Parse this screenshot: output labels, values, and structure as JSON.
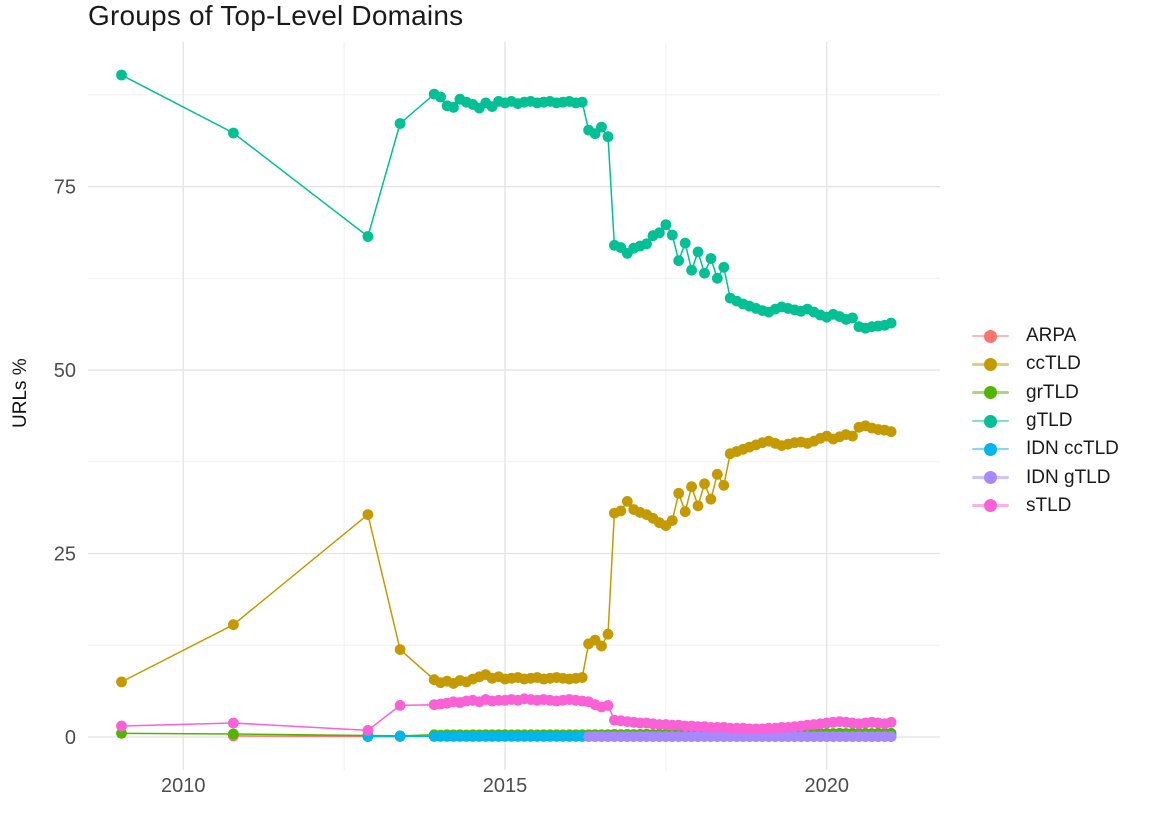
{
  "title": "Groups of Top-Level Domains",
  "axes": {
    "y_label": "URLs %",
    "x_tick_labels": [
      "2010",
      "2015",
      "2020"
    ],
    "y_tick_labels": [
      "0",
      "25",
      "50",
      "75"
    ]
  },
  "colors": {
    "background": "#FFFFFF",
    "grid_major": "#E3E3E3",
    "grid_minor": "#F0F0F0",
    "tick_text": "#4D4D4D",
    "title_text": "#1A1A1A"
  },
  "legend": {
    "entries": [
      {
        "label": "ARPA",
        "color": "#F8766D"
      },
      {
        "label": "ccTLD",
        "color": "#C49A00"
      },
      {
        "label": "grTLD",
        "color": "#53B400"
      },
      {
        "label": "gTLD",
        "color": "#00C094"
      },
      {
        "label": "IDN ccTLD",
        "color": "#00B6EB"
      },
      {
        "label": "IDN gTLD",
        "color": "#A58AFF"
      },
      {
        "label": "sTLD",
        "color": "#FB61D7"
      }
    ]
  },
  "chart_data": {
    "type": "line",
    "markers": true,
    "title": "Groups of Top-Level Domains",
    "xlabel": "",
    "ylabel": "URLs %",
    "xlim": [
      2008.52,
      2021.76
    ],
    "ylim": [
      -4.5,
      94.7
    ],
    "x_ticks": [
      2010,
      2015,
      2020
    ],
    "x_minor_ticks": [
      2012.5,
      2017.5
    ],
    "y_ticks": [
      0,
      25,
      50,
      75
    ],
    "y_minor_ticks": [
      12.5,
      37.5,
      62.5,
      87.5
    ],
    "grid": true,
    "legend_position": "right",
    "x_dense": [
      2013.9,
      2014.0,
      2014.1,
      2014.2,
      2014.3,
      2014.4,
      2014.5,
      2014.6,
      2014.7,
      2014.8,
      2014.9,
      2015.0,
      2015.1,
      2015.2,
      2015.3,
      2015.4,
      2015.5,
      2015.6,
      2015.7,
      2015.8,
      2015.9,
      2016.0,
      2016.1,
      2016.2,
      2016.3,
      2016.4,
      2016.5,
      2016.6,
      2016.7,
      2016.8,
      2016.9,
      2017.0,
      2017.1,
      2017.2,
      2017.3,
      2017.4,
      2017.5,
      2017.6,
      2017.7,
      2017.8,
      2017.9,
      2018.0,
      2018.1,
      2018.2,
      2018.3,
      2018.4,
      2018.5,
      2018.6,
      2018.7,
      2018.8,
      2018.9,
      2019.0,
      2019.1,
      2019.2,
      2019.3,
      2019.4,
      2019.5,
      2019.6,
      2019.7,
      2019.8,
      2019.9,
      2020.0,
      2020.1,
      2020.2,
      2020.3,
      2020.4,
      2020.5,
      2020.6,
      2020.7,
      2020.8,
      2020.9,
      2021.0
    ],
    "series": [
      {
        "name": "ARPA",
        "color": "#F8766D",
        "early": [
          [
            2010.78,
            0.15
          ],
          [
            2012.87,
            0.08
          ],
          [
            2013.37,
            0.05
          ]
        ],
        "y_dense": null
      },
      {
        "name": "ccTLD",
        "color": "#C49A00",
        "early": [
          [
            2009.04,
            7.5
          ],
          [
            2010.78,
            15.3
          ],
          [
            2012.87,
            30.3
          ],
          [
            2013.37,
            11.9
          ]
        ],
        "y_dense": [
          7.8,
          7.4,
          7.6,
          7.3,
          7.7,
          7.5,
          7.9,
          8.2,
          8.5,
          8.0,
          8.2,
          7.9,
          8.0,
          8.1,
          7.9,
          8.0,
          8.1,
          7.9,
          8.0,
          8.1,
          8.0,
          7.9,
          8.0,
          8.1,
          12.7,
          13.2,
          12.4,
          14.0,
          30.5,
          30.8,
          32.1,
          31.0,
          30.6,
          30.3,
          29.8,
          29.2,
          28.8,
          29.5,
          33.2,
          30.7,
          34.1,
          31.5,
          34.5,
          32.4,
          35.8,
          34.3,
          38.6,
          38.9,
          39.2,
          39.5,
          39.8,
          40.1,
          40.3,
          40.0,
          39.7,
          39.9,
          40.1,
          40.2,
          40.0,
          40.3,
          40.7,
          41.0,
          40.6,
          40.9,
          41.2,
          41.0,
          42.2,
          42.4,
          42.1,
          41.9,
          41.8,
          41.6
        ]
      },
      {
        "name": "grTLD",
        "color": "#53B400",
        "early": [
          [
            2009.04,
            0.5
          ],
          [
            2010.78,
            0.4
          ],
          [
            2012.87,
            0.2
          ],
          [
            2013.37,
            0.15
          ]
        ],
        "y_dense": [
          0.3,
          0.25,
          0.3,
          0.28,
          0.3,
          0.27,
          0.3,
          0.28,
          0.3,
          0.29,
          0.3,
          0.3,
          0.28,
          0.3,
          0.29,
          0.3,
          0.28,
          0.3,
          0.29,
          0.3,
          0.28,
          0.3,
          0.3,
          0.29,
          0.3,
          0.32,
          0.3,
          0.33,
          0.35,
          0.33,
          0.35,
          0.34,
          0.35,
          0.36,
          0.35,
          0.37,
          0.35,
          0.38,
          0.36,
          0.38,
          0.37,
          0.38,
          0.4,
          0.38,
          0.4,
          0.39,
          0.4,
          0.42,
          0.4,
          0.43,
          0.42,
          0.44,
          0.43,
          0.45,
          0.44,
          0.45,
          0.46,
          0.45,
          0.47,
          0.46,
          0.48,
          0.47,
          0.48,
          0.5,
          0.48,
          0.5,
          0.49,
          0.5,
          0.48,
          0.5,
          0.49,
          0.5
        ]
      },
      {
        "name": "gTLD",
        "color": "#00C094",
        "early": [
          [
            2009.04,
            90.2
          ],
          [
            2010.78,
            82.3
          ],
          [
            2012.87,
            68.2
          ],
          [
            2013.37,
            83.6
          ]
        ],
        "y_dense": [
          87.6,
          87.2,
          86.0,
          85.8,
          86.9,
          86.5,
          86.2,
          85.7,
          86.4,
          85.9,
          86.6,
          86.4,
          86.6,
          86.3,
          86.5,
          86.6,
          86.4,
          86.5,
          86.6,
          86.4,
          86.5,
          86.6,
          86.4,
          86.5,
          82.7,
          82.2,
          83.1,
          81.8,
          67.0,
          66.7,
          65.9,
          66.6,
          66.9,
          67.2,
          68.3,
          68.7,
          69.8,
          68.4,
          64.9,
          67.3,
          63.6,
          66.1,
          63.2,
          65.2,
          62.5,
          64.0,
          59.8,
          59.4,
          59.0,
          58.7,
          58.4,
          58.1,
          57.9,
          58.3,
          58.6,
          58.4,
          58.2,
          58.0,
          58.3,
          57.9,
          57.5,
          57.2,
          57.6,
          57.3,
          56.9,
          57.1,
          55.9,
          55.7,
          55.9,
          56.0,
          56.1,
          56.4
        ]
      },
      {
        "name": "IDN ccTLD",
        "color": "#00B6EB",
        "early": [
          [
            2012.87,
            0.05
          ],
          [
            2013.37,
            0.1
          ]
        ],
        "y_dense": [
          0.08,
          0.08,
          0.08,
          0.08,
          0.08,
          0.08,
          0.08,
          0.08,
          0.08,
          0.08,
          0.08,
          0.08,
          0.08,
          0.08,
          0.08,
          0.08,
          0.08,
          0.08,
          0.08,
          0.08,
          0.08,
          0.08,
          0.08,
          0.08,
          0.08,
          0.08,
          0.08,
          0.08,
          0.08,
          0.08,
          0.08,
          0.08,
          0.08,
          0.08,
          0.08,
          0.08,
          0.08,
          0.08,
          0.08,
          0.08,
          0.08,
          0.08,
          0.08,
          0.08,
          0.08,
          0.08,
          0.08,
          0.08,
          0.08,
          0.08,
          0.08,
          0.08,
          0.08,
          0.08,
          0.08,
          0.08,
          0.08,
          0.08,
          0.08,
          0.08,
          0.08,
          0.08,
          0.08,
          0.08,
          0.08,
          0.08,
          0.08,
          0.08,
          0.08,
          0.08,
          0.08,
          0.08
        ]
      },
      {
        "name": "IDN gTLD",
        "color": "#A58AFF",
        "early": [],
        "y_dense": [
          null,
          null,
          null,
          null,
          null,
          null,
          null,
          null,
          null,
          null,
          null,
          null,
          null,
          null,
          null,
          null,
          null,
          null,
          null,
          null,
          null,
          null,
          null,
          null,
          0.05,
          0.05,
          0.05,
          0.05,
          0.05,
          0.05,
          0.05,
          0.05,
          0.05,
          0.05,
          0.05,
          0.05,
          0.05,
          0.05,
          0.05,
          0.05,
          0.05,
          0.05,
          0.05,
          0.05,
          0.05,
          0.05,
          0.05,
          0.05,
          0.05,
          0.05,
          0.05,
          0.05,
          0.05,
          0.05,
          0.05,
          0.05,
          0.05,
          0.05,
          0.05,
          0.05,
          0.05,
          0.05,
          0.05,
          0.05,
          0.05,
          0.05,
          0.05,
          0.05,
          0.05,
          0.05,
          0.05,
          0.05
        ]
      },
      {
        "name": "sTLD",
        "color": "#FB61D7",
        "early": [
          [
            2009.04,
            1.5
          ],
          [
            2010.78,
            1.9
          ],
          [
            2012.87,
            0.9
          ],
          [
            2013.37,
            4.3
          ]
        ],
        "y_dense": [
          4.4,
          4.5,
          4.6,
          4.8,
          4.7,
          4.9,
          5.0,
          4.8,
          5.1,
          4.9,
          5.0,
          5.0,
          5.1,
          5.0,
          5.2,
          5.1,
          5.0,
          5.1,
          5.0,
          4.9,
          5.0,
          5.1,
          5.0,
          4.9,
          4.8,
          4.4,
          4.1,
          4.3,
          2.3,
          2.2,
          2.1,
          2.0,
          1.9,
          1.9,
          1.8,
          1.7,
          1.7,
          1.6,
          1.6,
          1.5,
          1.5,
          1.4,
          1.4,
          1.3,
          1.3,
          1.3,
          1.2,
          1.2,
          1.2,
          1.1,
          1.1,
          1.1,
          1.2,
          1.2,
          1.3,
          1.3,
          1.4,
          1.5,
          1.6,
          1.7,
          1.8,
          1.9,
          2.0,
          2.1,
          2.0,
          1.9,
          1.8,
          1.9,
          2.0,
          1.9,
          1.8,
          2.0
        ]
      }
    ]
  }
}
